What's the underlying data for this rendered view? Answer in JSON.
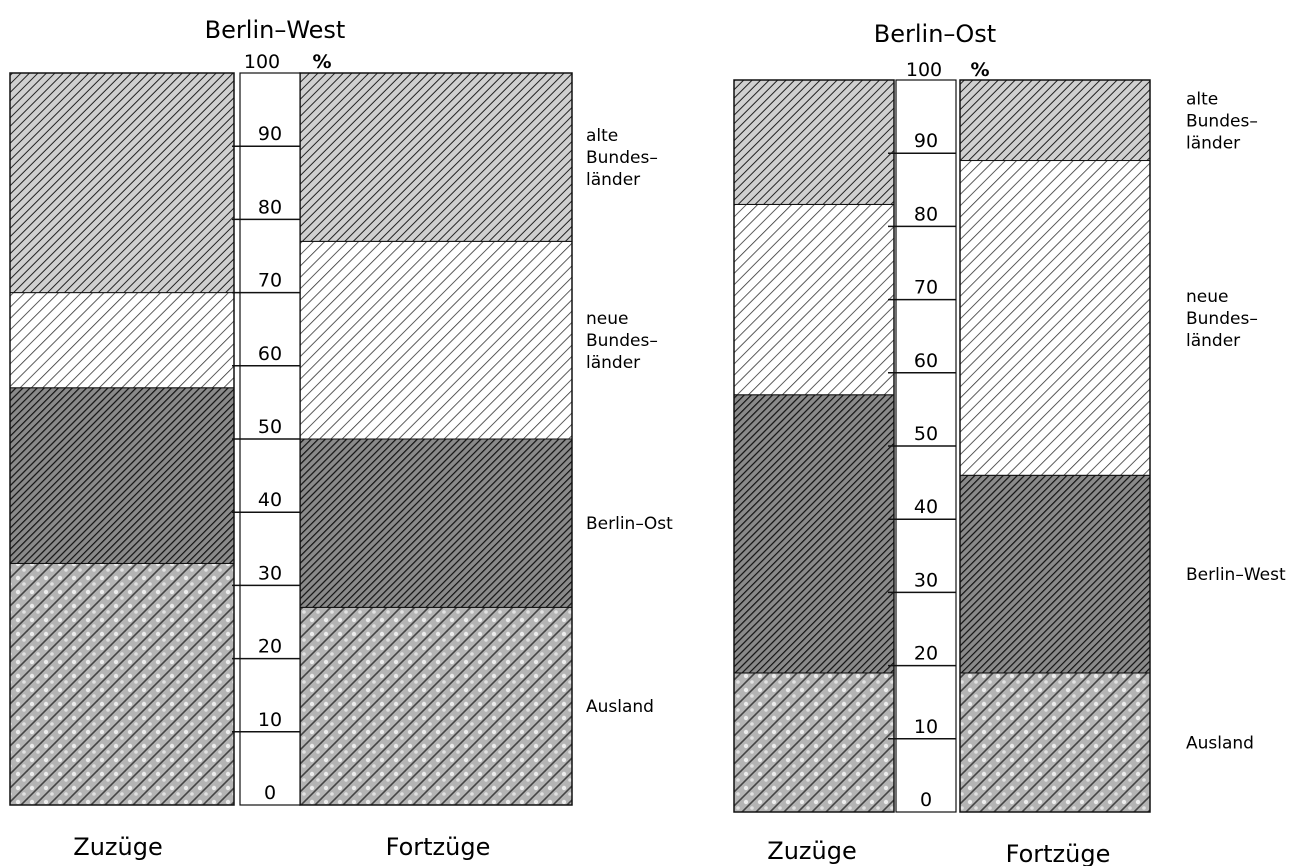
{
  "chart_data": [
    {
      "type": "bar",
      "stacked": true,
      "title": "Berlin–West",
      "unit": "%",
      "ylim": [
        0,
        100
      ],
      "scale_ticks": [
        "0",
        "10",
        "20",
        "30",
        "40",
        "50",
        "60",
        "70",
        "80",
        "90"
      ],
      "scale_top": "100",
      "categories": [
        "Zuzüge",
        "Fortzüge"
      ],
      "series": [
        {
          "name": "Ausland",
          "values": [
            33,
            27
          ],
          "pattern": "dots"
        },
        {
          "name": "Berlin–Ost",
          "values": [
            24,
            23
          ],
          "pattern": "dark"
        },
        {
          "name": "neue\nBundes–\nländer",
          "values": [
            13,
            27
          ],
          "pattern": "light"
        },
        {
          "name": "alte\nBundes–\nländer",
          "values": [
            30,
            23
          ],
          "pattern": "medium"
        }
      ]
    },
    {
      "type": "bar",
      "stacked": true,
      "title": "Berlin–Ost",
      "unit": "%",
      "ylim": [
        0,
        100
      ],
      "scale_ticks": [
        "0",
        "10",
        "20",
        "30",
        "40",
        "50",
        "60",
        "70",
        "80",
        "90"
      ],
      "scale_top": "100",
      "categories": [
        "Zuzüge",
        "Fortzüge"
      ],
      "series": [
        {
          "name": "Ausland",
          "values": [
            19,
            19
          ],
          "pattern": "dots"
        },
        {
          "name": "Berlin–West",
          "values": [
            38,
            27
          ],
          "pattern": "dark"
        },
        {
          "name": "neue\nBundes–\nländer",
          "values": [
            26,
            43
          ],
          "pattern": "light"
        },
        {
          "name": "alte\nBundes–\nländer",
          "values": [
            17,
            11
          ],
          "pattern": "medium"
        }
      ]
    }
  ],
  "colors": {
    "ink": "#111111",
    "light_fill": "#ffffff",
    "medium_fill": "#cfcfcf",
    "dark_fill": "#6f6f6f",
    "dots_fill": "#b4b4b4"
  }
}
